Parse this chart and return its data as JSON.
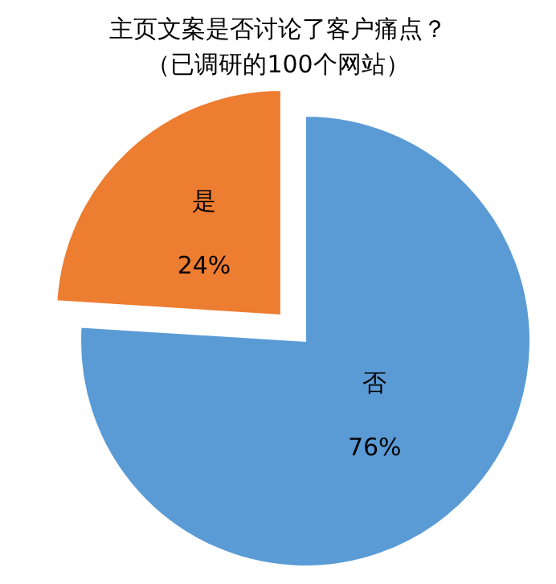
{
  "chart_data": {
    "type": "pie",
    "title": [
      "主页文案是否讨论了客户痛点？",
      "（已调研的100个网站）"
    ],
    "categories": [
      "否",
      "是"
    ],
    "values": [
      76,
      24
    ],
    "value_labels": [
      "76%",
      "24%"
    ],
    "colors": [
      "#5b9bd5",
      "#ed7d31"
    ]
  }
}
